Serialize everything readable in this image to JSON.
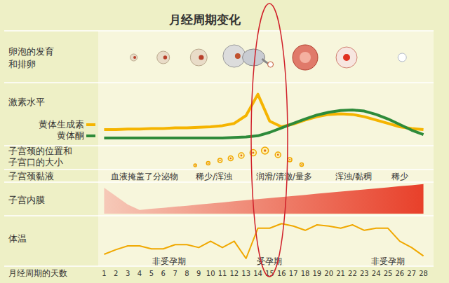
{
  "title": "月经周期变化",
  "rows": [
    [
      "卵泡的发育",
      "和排卵"
    ],
    [
      "激素水平"
    ],
    [
      "子宫颈的位置和",
      "子宫口的大小"
    ],
    [
      "子宫颈黏液"
    ],
    [
      "子宫内膜"
    ]
  ],
  "cervical_mucus": [
    {
      "text": "血液掩盖了分泌物",
      "x": 4.4
    },
    {
      "text": "稀少/浑浊",
      "x": 10.3
    },
    {
      "text": "润滑/清澈/量多",
      "x": 16.2
    },
    {
      "text": "浑浊/黏稠",
      "x": 22.1
    },
    {
      "text": "稀少",
      "x": 26
    }
  ],
  "chart_data": [
    {
      "type": "line",
      "tick_labels": false,
      "legend": "left",
      "x": [
        1,
        2,
        3,
        4,
        5,
        6,
        7,
        8,
        9,
        10,
        11,
        12,
        13,
        14,
        15,
        16,
        17,
        18,
        19,
        20,
        21,
        22,
        23,
        24,
        25,
        26,
        27,
        28
      ],
      "xlim": [
        0.5,
        28.5
      ],
      "ylim": [
        0,
        100
      ],
      "series": [
        {
          "name": "黄体生成素",
          "color": "#f5b400",
          "values": [
            25,
            25,
            26,
            26,
            27,
            27,
            28,
            28,
            29,
            30,
            32,
            36,
            50,
            88,
            40,
            30,
            35,
            42,
            48,
            52,
            53,
            52,
            48,
            42,
            36,
            30,
            27,
            25
          ]
        },
        {
          "name": "黄体酮",
          "color": "#2e8b3a",
          "values": [
            10,
            10,
            10,
            10,
            10,
            10,
            10,
            10,
            10,
            10,
            10,
            11,
            12,
            14,
            20,
            28,
            36,
            44,
            51,
            56,
            59,
            60,
            58,
            52,
            44,
            34,
            24,
            16
          ]
        }
      ]
    },
    {
      "type": "area",
      "tick_labels": false,
      "color": "#e8402a",
      "x": [
        1,
        2,
        3,
        4,
        5,
        6,
        7,
        8,
        9,
        10,
        11,
        12,
        13,
        14,
        15,
        16,
        17,
        18,
        19,
        20,
        21,
        22,
        23,
        24,
        25,
        26,
        27,
        28
      ],
      "xlim": [
        0.5,
        28.5
      ],
      "ylim": [
        0,
        100
      ],
      "values": [
        86,
        58,
        30,
        12,
        16,
        19,
        23,
        26,
        30,
        34,
        37,
        41,
        45,
        48,
        52,
        55,
        59,
        62,
        66,
        70,
        73,
        77,
        80,
        84,
        87,
        91,
        94,
        98
      ]
    },
    {
      "type": "line",
      "title": "体温",
      "xlabel": "月经周期的天数",
      "tick_labels": "x",
      "color": "#f0a800",
      "x": [
        1,
        2,
        3,
        4,
        5,
        6,
        7,
        8,
        9,
        10,
        11,
        12,
        13,
        14,
        15,
        16,
        17,
        18,
        19,
        20,
        21,
        22,
        23,
        24,
        25,
        26,
        27,
        28
      ],
      "xlim": [
        0.5,
        28.5
      ],
      "ylim": [
        0,
        100
      ],
      "xticks": [
        1,
        2,
        3,
        4,
        5,
        6,
        7,
        8,
        9,
        10,
        11,
        12,
        13,
        14,
        15,
        16,
        17,
        18,
        19,
        20,
        21,
        22,
        23,
        24,
        25,
        26,
        27,
        28
      ],
      "values": [
        15,
        26,
        35,
        35,
        28,
        28,
        38,
        38,
        31,
        46,
        31,
        46,
        5,
        77,
        77,
        88,
        82,
        72,
        85,
        82,
        77,
        85,
        72,
        77,
        77,
        46,
        31,
        11
      ],
      "annotations": [
        {
          "text": "非受孕期",
          "x": 6.5
        },
        {
          "text": "受孕期",
          "x": 15
        },
        {
          "text": "非受孕期",
          "x": 25
        }
      ]
    }
  ]
}
